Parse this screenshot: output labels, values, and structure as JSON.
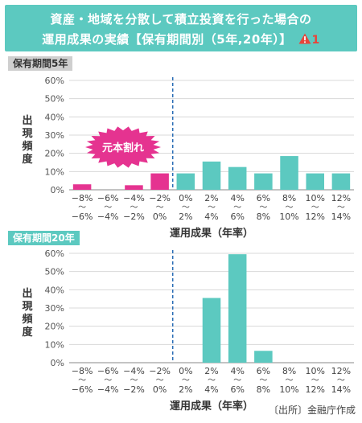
{
  "header": {
    "title_line1": "資産・地域を分散して積立投資を行った場合の",
    "title_line2": "運用成果の実績【保有期間別（5年,20年）】",
    "warning_icon": "warning-triangle-icon",
    "warning_number": "1"
  },
  "source": "〔出所〕金融庁作成",
  "colors": {
    "teal": "#5cc9c0",
    "pink": "#e53390",
    "loss_badge": "#e53390",
    "dashed_line": "#2a6db5"
  },
  "chart_data": [
    {
      "type": "bar",
      "period_label": "保有期間5年",
      "ylabel": "出現頻度",
      "xlabel": "運用成果（年率）",
      "ylim": [
        0,
        60
      ],
      "yticks": [
        "0%",
        "10%",
        "20%",
        "30%",
        "40%",
        "50%",
        "60%"
      ],
      "categories": [
        {
          "top": "−8%",
          "mid": "〜",
          "bottom": "−6%"
        },
        {
          "top": "−6%",
          "mid": "〜",
          "bottom": "−4%"
        },
        {
          "top": "−4%",
          "mid": "〜",
          "bottom": "−2%"
        },
        {
          "top": "−2%",
          "mid": "〜",
          "bottom": "0%"
        },
        {
          "top": "0%",
          "mid": "〜",
          "bottom": "2%"
        },
        {
          "top": "2%",
          "mid": "〜",
          "bottom": "4%"
        },
        {
          "top": "4%",
          "mid": "〜",
          "bottom": "6%"
        },
        {
          "top": "6%",
          "mid": "〜",
          "bottom": "8%"
        },
        {
          "top": "8%",
          "mid": "〜",
          "bottom": "10%"
        },
        {
          "top": "10%",
          "mid": "〜",
          "bottom": "12%"
        },
        {
          "top": "12%",
          "mid": "〜",
          "bottom": "14%"
        }
      ],
      "values": [
        3,
        0,
        2.5,
        9,
        9,
        15.5,
        12.5,
        9,
        18.5,
        9,
        9
      ],
      "bar_colors": [
        "pink",
        "pink",
        "pink",
        "pink",
        "teal",
        "teal",
        "teal",
        "teal",
        "teal",
        "teal",
        "teal"
      ],
      "annotation": "元本割れ"
    },
    {
      "type": "bar",
      "period_label": "保有期間20年",
      "ylabel": "出現頻度",
      "xlabel": "運用成果（年率）",
      "ylim": [
        0,
        60
      ],
      "yticks": [
        "0%",
        "10%",
        "20%",
        "30%",
        "40%",
        "50%",
        "60%"
      ],
      "categories": [
        {
          "top": "−8%",
          "mid": "〜",
          "bottom": "−6%"
        },
        {
          "top": "−6%",
          "mid": "〜",
          "bottom": "−4%"
        },
        {
          "top": "−4%",
          "mid": "〜",
          "bottom": "−2%"
        },
        {
          "top": "−2%",
          "mid": "〜",
          "bottom": "0%"
        },
        {
          "top": "0%",
          "mid": "〜",
          "bottom": "2%"
        },
        {
          "top": "2%",
          "mid": "〜",
          "bottom": "4%"
        },
        {
          "top": "4%",
          "mid": "〜",
          "bottom": "6%"
        },
        {
          "top": "6%",
          "mid": "〜",
          "bottom": "8%"
        },
        {
          "top": "8%",
          "mid": "〜",
          "bottom": "10%"
        },
        {
          "top": "10%",
          "mid": "〜",
          "bottom": "12%"
        },
        {
          "top": "12%",
          "mid": "〜",
          "bottom": "14%"
        }
      ],
      "values": [
        0,
        0,
        0,
        0,
        0,
        35.5,
        59.5,
        6.5,
        0,
        0,
        0
      ],
      "bar_colors": [
        "teal",
        "teal",
        "teal",
        "teal",
        "teal",
        "teal",
        "teal",
        "teal",
        "teal",
        "teal",
        "teal"
      ]
    }
  ]
}
